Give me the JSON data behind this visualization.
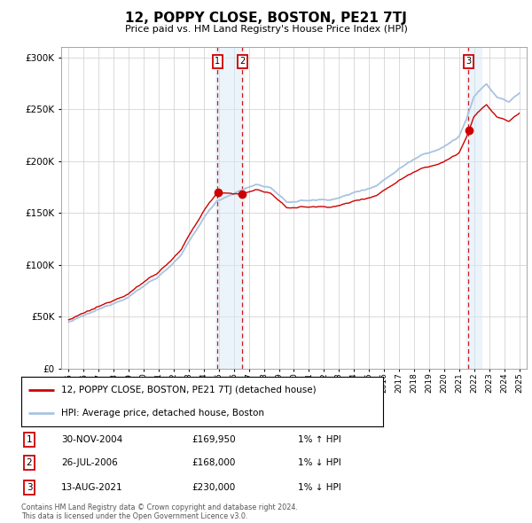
{
  "title": "12, POPPY CLOSE, BOSTON, PE21 7TJ",
  "subtitle": "Price paid vs. HM Land Registry's House Price Index (HPI)",
  "ylim": [
    0,
    310000
  ],
  "xlim_start": 1994.5,
  "xlim_end": 2025.5,
  "sale1_date": 2004.92,
  "sale1_price": 169950,
  "sale2_date": 2006.57,
  "sale2_price": 168000,
  "sale3_date": 2021.62,
  "sale3_price": 230000,
  "legend_line1": "12, POPPY CLOSE, BOSTON, PE21 7TJ (detached house)",
  "legend_line2": "HPI: Average price, detached house, Boston",
  "table_rows": [
    {
      "num": "1",
      "date": "30-NOV-2004",
      "price": "£169,950",
      "hpi": "1% ↑ HPI"
    },
    {
      "num": "2",
      "date": "26-JUL-2006",
      "price": "£168,000",
      "hpi": "1% ↓ HPI"
    },
    {
      "num": "3",
      "date": "13-AUG-2021",
      "price": "£230,000",
      "hpi": "1% ↓ HPI"
    }
  ],
  "footer": "Contains HM Land Registry data © Crown copyright and database right 2024.\nThis data is licensed under the Open Government Licence v3.0.",
  "hpi_color": "#a8c4e0",
  "sale_color": "#cc0000",
  "bg_color": "#ffffff",
  "grid_color": "#cccccc",
  "shade_color": "#d8eaf8"
}
